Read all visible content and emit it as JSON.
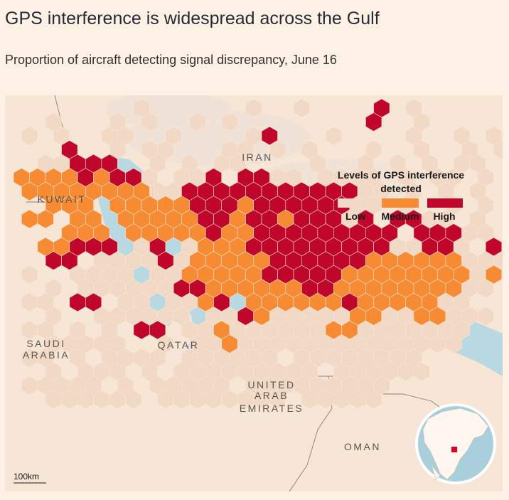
{
  "title": "GPS interference is widespread across the Gulf",
  "subtitle": "Proportion of aircraft detecting signal discrepancy, June 16",
  "colors": {
    "background": "#fdf1e6",
    "land": "#f7e6d6",
    "water": "#b8d8e2",
    "low": "#f1d9c5",
    "medium": "#f68b34",
    "high": "#c0062a",
    "border": "#8a7f76"
  },
  "legend": {
    "title_line1": "Levels of GPS interference",
    "title_line2": "detected",
    "items": [
      {
        "label": "Low",
        "color": "#f1d9c5"
      },
      {
        "label": "Medium",
        "color": "#f68b34"
      },
      {
        "label": "High",
        "color": "#c0062a"
      }
    ]
  },
  "labels": {
    "iran": "IRAN",
    "kuwait": "KUWAIT",
    "saudi_line1": "SAUDI",
    "saudi_line2": "ARABIA",
    "qatar": "QATAR",
    "uae_line1": "UNITED",
    "uae_line2": "ARAB",
    "uae_line3": "EMIRATES",
    "oman": "OMAN"
  },
  "scale_bar": "100km",
  "inset": {
    "name": "globe-locator",
    "highlight_color": "#e0001b"
  }
}
